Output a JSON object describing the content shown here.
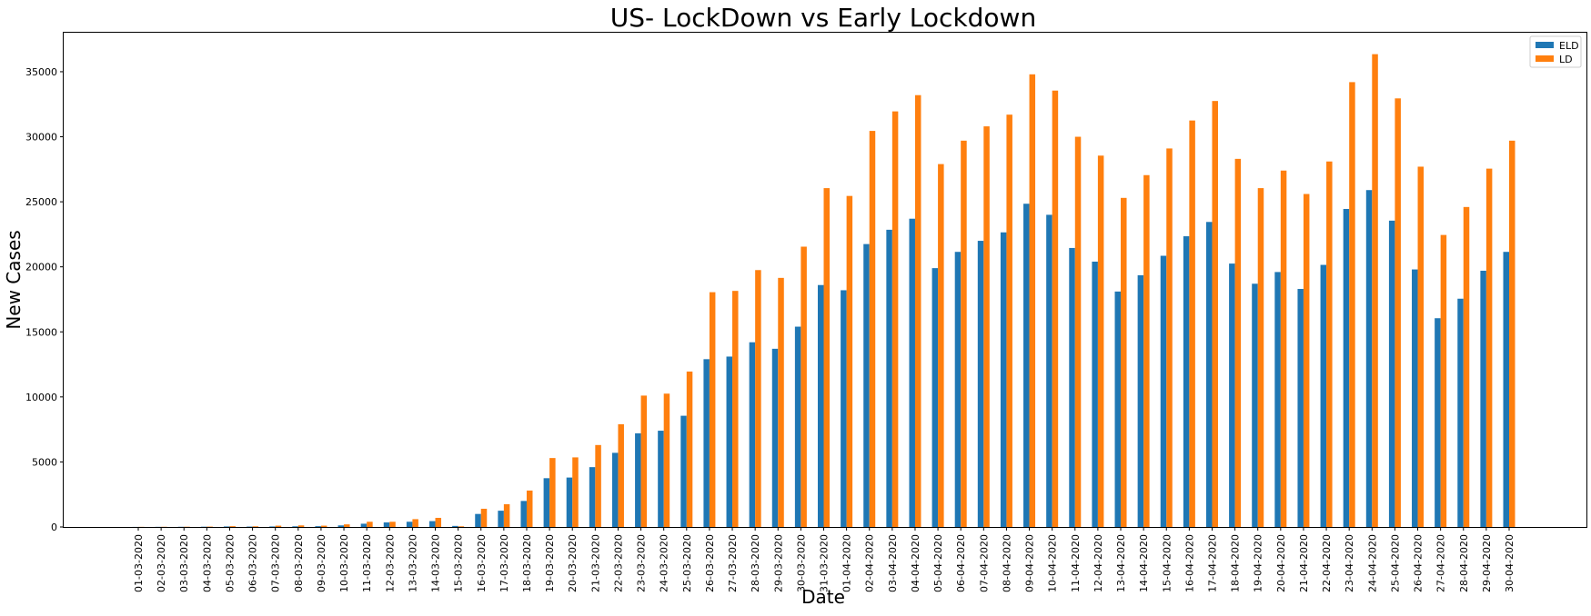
{
  "chart_data": {
    "type": "bar",
    "title": "US- LockDown vs Early Lockdown",
    "xlabel": "Date",
    "ylabel": "New Cases",
    "ylim": [
      0,
      38000
    ],
    "yticks": [
      0,
      5000,
      10000,
      15000,
      20000,
      25000,
      30000,
      35000
    ],
    "grid": false,
    "legend_position": "top-right",
    "categories": [
      "01-03-2020",
      "02-03-2020",
      "03-03-2020",
      "04-03-2020",
      "05-03-2020",
      "06-03-2020",
      "07-03-2020",
      "08-03-2020",
      "09-03-2020",
      "10-03-2020",
      "11-03-2020",
      "12-03-2020",
      "13-03-2020",
      "14-03-2020",
      "15-03-2020",
      "16-03-2020",
      "17-03-2020",
      "18-03-2020",
      "19-03-2020",
      "20-03-2020",
      "21-03-2020",
      "22-03-2020",
      "23-03-2020",
      "24-03-2020",
      "25-03-2020",
      "26-03-2020",
      "27-03-2020",
      "28-03-2020",
      "29-03-2020",
      "30-03-2020",
      "31-03-2020",
      "01-04-2020",
      "02-04-2020",
      "03-04-2020",
      "04-04-2020",
      "05-04-2020",
      "06-04-2020",
      "07-04-2020",
      "08-04-2020",
      "09-04-2020",
      "10-04-2020",
      "11-04-2020",
      "12-04-2020",
      "13-04-2020",
      "14-04-2020",
      "15-04-2020",
      "16-04-2020",
      "17-04-2020",
      "18-04-2020",
      "19-04-2020",
      "20-04-2020",
      "21-04-2020",
      "22-04-2020",
      "23-04-2020",
      "24-04-2020",
      "25-04-2020",
      "26-04-2020",
      "27-04-2020",
      "28-04-2020",
      "29-04-2020",
      "30-04-2020"
    ],
    "series": [
      {
        "name": "ELD",
        "color": "#1f77b4",
        "values": [
          5,
          10,
          15,
          20,
          40,
          30,
          40,
          50,
          60,
          120,
          250,
          350,
          400,
          450,
          80,
          1000,
          1250,
          2000,
          3750,
          3800,
          4600,
          5700,
          7200,
          7400,
          8550,
          12900,
          13100,
          14200,
          13700,
          15400,
          18600,
          18200,
          21750,
          22850,
          23700,
          19900,
          21150,
          22000,
          22650,
          24850,
          24000,
          21450,
          20400,
          18100,
          19350,
          20850,
          22350,
          23450,
          20250,
          18700,
          19600,
          18300,
          20150,
          24450,
          25900,
          23550,
          19800,
          16050,
          17550,
          19700,
          21150
        ]
      },
      {
        "name": "LD",
        "color": "#ff7f0e",
        "values": [
          10,
          15,
          20,
          30,
          60,
          50,
          100,
          120,
          100,
          200,
          400,
          400,
          600,
          700,
          50,
          1400,
          1750,
          2800,
          5300,
          5350,
          6300,
          7900,
          10100,
          10250,
          11950,
          18050,
          18150,
          19750,
          19150,
          21550,
          26050,
          25450,
          30450,
          31950,
          33200,
          27900,
          29700,
          30800,
          31700,
          34800,
          33550,
          30000,
          28550,
          25300,
          27050,
          29100,
          31250,
          32750,
          28300,
          26050,
          27400,
          25600,
          28100,
          34200,
          36350,
          32950,
          27700,
          22450,
          24600,
          27550,
          29700
        ]
      }
    ]
  }
}
